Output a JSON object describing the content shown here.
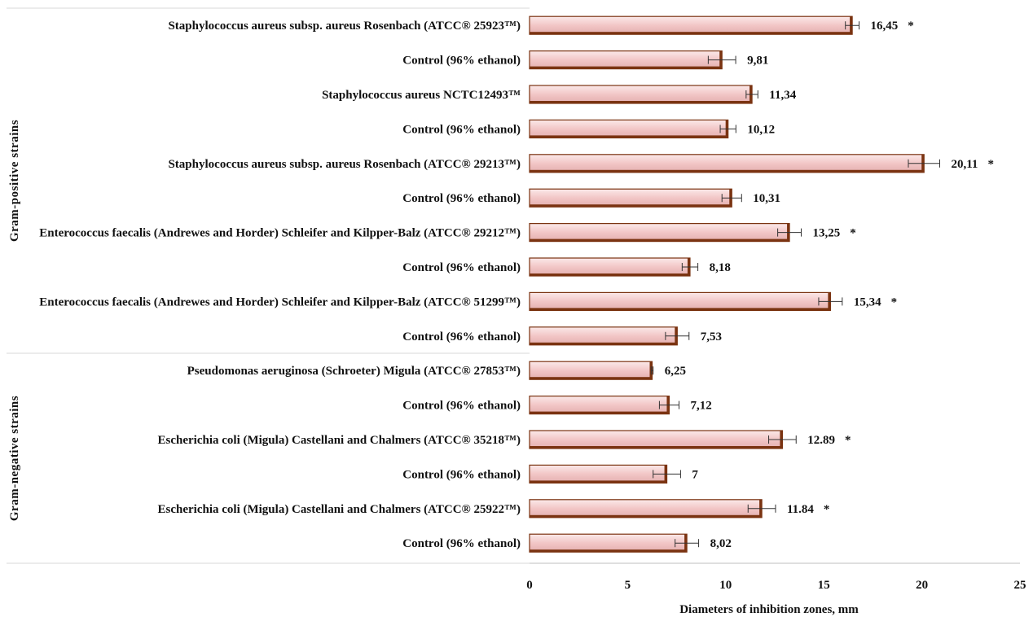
{
  "chart_data": {
    "type": "bar",
    "orientation": "horizontal",
    "xlabel": "Diameters of inhibition zones, mm",
    "xlim": [
      0,
      25
    ],
    "xticks": [
      0,
      5,
      10,
      15,
      20,
      25
    ],
    "groups": [
      {
        "label": "Gram-positive strains",
        "count": 10
      },
      {
        "label": "Gram-negative strains",
        "count": 6
      }
    ],
    "categories": [
      "Staphylococcus aureus subsp. aureus Rosenbach (ATCC® 25923™)",
      "Control (96% ethanol)",
      "Staphylococcus aureus NCTC12493™",
      "Control (96% ethanol)",
      "Staphylococcus aureus subsp. aureus Rosenbach (ATCC® 29213™)",
      "Control (96% ethanol)",
      "Enterococcus faecalis (Andrewes and Horder) Schleifer and Kilpper-Balz (ATCC® 29212™)",
      "Control (96% ethanol)",
      "Enterococcus faecalis (Andrewes and Horder) Schleifer and Kilpper-Balz (ATCC® 51299™)",
      "Control (96% ethanol)",
      "Pseudomonas aeruginosa (Schroeter) Migula (ATCC® 27853™)",
      "Control (96% ethanol)",
      "Escherichia coli (Migula) Castellani and Chalmers (ATCC® 35218™)",
      "Control (96% ethanol)",
      "Escherichia coli (Migula) Castellani and Chalmers (ATCC® 25922™)",
      "Control (96% ethanol)"
    ],
    "values": [
      16.45,
      9.81,
      11.34,
      10.12,
      20.11,
      10.31,
      13.25,
      8.18,
      15.34,
      7.53,
      6.25,
      7.12,
      12.89,
      7,
      11.84,
      8.02
    ],
    "value_labels": [
      "16,45",
      "9,81",
      "11,34",
      "10,12",
      "20,11",
      "10,31",
      "13,25",
      "8,18",
      "15,34",
      "7,53",
      "6,25",
      "7,12",
      "12.89",
      "7",
      "11.84",
      "8,02"
    ],
    "errors": [
      0.35,
      0.7,
      0.3,
      0.4,
      0.8,
      0.5,
      0.6,
      0.4,
      0.6,
      0.6,
      0.05,
      0.5,
      0.7,
      0.7,
      0.7,
      0.6
    ],
    "significance": [
      "*",
      "",
      "",
      "",
      "*",
      "",
      "*",
      "",
      "*",
      "",
      "",
      "",
      "*",
      "",
      "*",
      ""
    ],
    "bar_color": "#f2c9c9",
    "bar_edge_color": "#7a3311",
    "grid": false
  }
}
